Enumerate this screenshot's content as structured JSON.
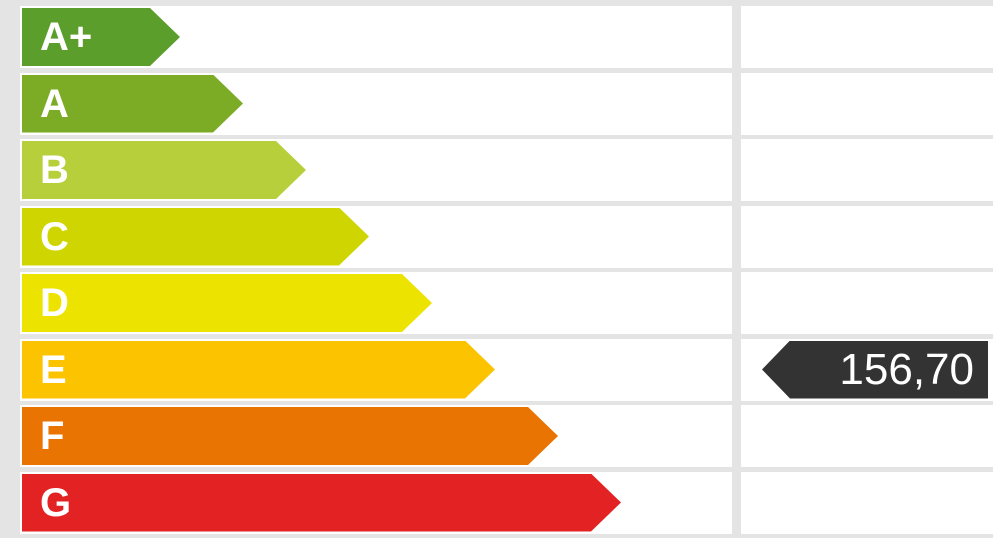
{
  "rating": {
    "classes": [
      {
        "label": "A+",
        "color": "#5b9e2c"
      },
      {
        "label": "A",
        "color": "#7cab26"
      },
      {
        "label": "B",
        "color": "#b6cf3a"
      },
      {
        "label": "C",
        "color": "#cfd500"
      },
      {
        "label": "D",
        "color": "#ece400"
      },
      {
        "label": "E",
        "color": "#fcc300"
      },
      {
        "label": "F",
        "color": "#ea7402"
      },
      {
        "label": "G",
        "color": "#e32323"
      }
    ],
    "current_value": "156,70",
    "current_class": "E",
    "pointer_color": "#333333"
  }
}
